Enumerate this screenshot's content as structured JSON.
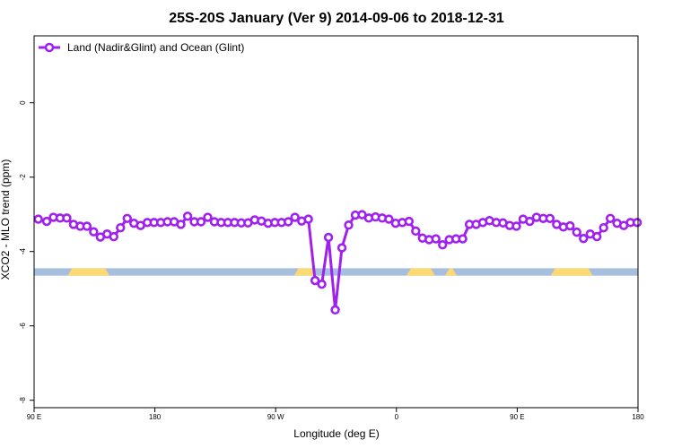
{
  "chart_data": {
    "type": "line",
    "title": "25S-20S January (Ver 9)   2014-09-06 to 2018-12-31",
    "xlabel": "Longitude (deg E)",
    "ylabel": "XCO2 - MLO trend (ppm)",
    "xlim": [
      90,
      450
    ],
    "ylim": [
      -8.2,
      1.8
    ],
    "x_ticks": [
      {
        "value": 90,
        "label": "90 E"
      },
      {
        "value": 162,
        "label": "180"
      },
      {
        "value": 234,
        "label": "90 W"
      },
      {
        "value": 306,
        "label": "0"
      },
      {
        "value": 378,
        "label": "90 E"
      },
      {
        "value": 450,
        "label": "180"
      }
    ],
    "y_ticks": [
      {
        "value": 0,
        "label": "0"
      },
      {
        "value": -2,
        "label": "-2"
      },
      {
        "value": -4,
        "label": "-4"
      },
      {
        "value": -6,
        "label": "-6"
      },
      {
        "value": -8,
        "label": "-8"
      }
    ],
    "legend": {
      "position": "top-left"
    },
    "series": [
      {
        "name": "Land (Nadir&Glint) and Ocean (Glint)",
        "color": "#a020f0",
        "x": [
          92.5,
          97.5,
          101.5,
          105.5,
          109.5,
          113.5,
          117.5,
          121.5,
          125.5,
          129.5,
          133.5,
          137.5,
          141.5,
          145.5,
          149.5,
          153.5,
          157.5,
          161.5,
          165.5,
          169.5,
          173.5,
          177.5,
          181.5,
          185.5,
          189.5,
          193.5,
          197.5,
          201.5,
          205.5,
          209.5,
          213.5,
          217.5,
          221.5,
          225.5,
          229.5,
          233.5,
          237.5,
          241.5,
          245.5,
          249.5,
          253.5,
          257.5,
          261.5,
          265.5,
          269.5,
          273.5,
          277.5,
          281.5,
          285.5,
          289.5,
          293.5,
          297.5,
          301.5,
          305.5,
          309.5,
          313.5,
          317.5,
          321.5,
          325.5,
          329.5,
          333.5,
          337.5,
          341.5,
          345.5,
          349.5,
          353.5,
          357.5,
          361.5,
          365.5,
          369.5,
          373.5,
          377.5,
          381.5,
          385.5,
          389.5,
          393.5,
          397.5,
          401.5,
          405.5,
          409.5,
          413.5,
          417.5,
          421.5,
          425.5,
          429.5,
          433.5,
          437.5,
          441.5,
          445.5,
          449.5
        ],
        "y": [
          -3.13,
          -3.19,
          -3.08,
          -3.1,
          -3.1,
          -3.27,
          -3.32,
          -3.32,
          -3.47,
          -3.61,
          -3.53,
          -3.6,
          -3.36,
          -3.11,
          -3.24,
          -3.3,
          -3.22,
          -3.22,
          -3.22,
          -3.2,
          -3.2,
          -3.27,
          -3.05,
          -3.2,
          -3.2,
          -3.08,
          -3.2,
          -3.22,
          -3.22,
          -3.22,
          -3.23,
          -3.23,
          -3.15,
          -3.18,
          -3.24,
          -3.22,
          -3.22,
          -3.2,
          -3.08,
          -3.18,
          -3.13,
          -4.78,
          -4.88,
          -3.62,
          -5.57,
          -3.9,
          -3.29,
          -3.02,
          -3.01,
          -3.1,
          -3.07,
          -3.1,
          -3.13,
          -3.24,
          -3.22,
          -3.19,
          -3.45,
          -3.64,
          -3.68,
          -3.66,
          -3.82,
          -3.68,
          -3.66,
          -3.66,
          -3.27,
          -3.27,
          -3.22,
          -3.17,
          -3.22,
          -3.23,
          -3.3,
          -3.32,
          -3.13,
          -3.19,
          -3.08,
          -3.11,
          -3.11,
          -3.27,
          -3.34,
          -3.31,
          -3.48,
          -3.65,
          -3.53,
          -3.6,
          -3.36,
          -3.11,
          -3.24,
          -3.3,
          -3.22,
          -3.22
        ]
      }
    ],
    "surface_band": {
      "y_top": -4.45,
      "y_bottom": -4.65,
      "ocean_color": "#a7bfdf",
      "land_color": "#fdd972",
      "land_segments": [
        [
          110,
          135
        ],
        [
          245,
          258
        ],
        [
          312,
          329
        ],
        [
          335,
          342
        ],
        [
          398,
          423
        ]
      ]
    }
  }
}
